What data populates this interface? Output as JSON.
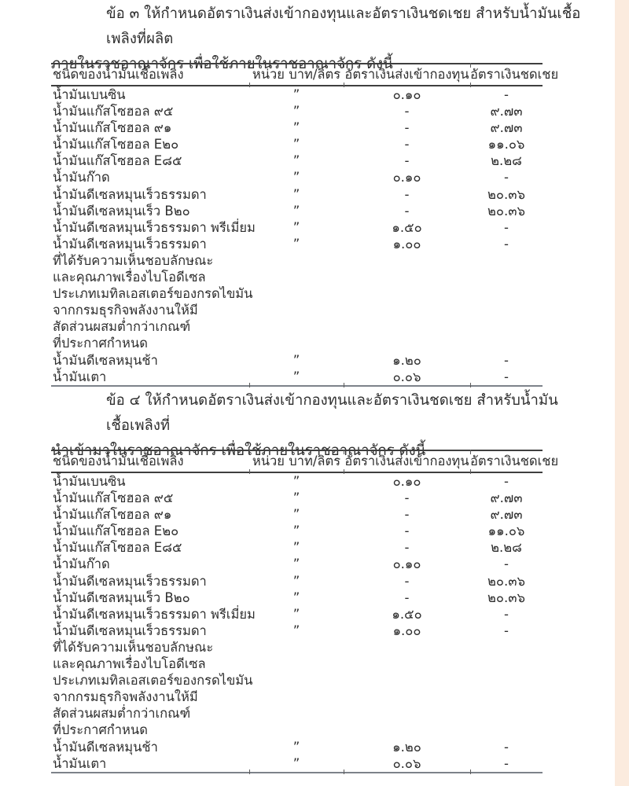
{
  "page": {
    "accent_strip_color": "#fbebde",
    "text_color": "#2e2e2e",
    "rule_color": "#3f3f3f",
    "bottom_rule_color": "#7d828a"
  },
  "sections": [
    {
      "intro": {
        "line1": "ข้อ ๓ ให้กำหนดอัตราเงินส่งเข้ากองทุนและอัตราเงินชดเชย สำหรับน้ำมันเชื้อเพลิงที่ผลิต",
        "line2": "ภายในราชอาณาจักร เพื่อใช้ภายในราชอาณาจักร ดังนี้"
      },
      "table": {
        "headers": [
          "ชนิดของน้ำมันเชื้อเพลิง",
          "หน่วย บาท/ลิตร",
          "อัตราเงินส่งเข้ากองทุน",
          "อัตราเงินชดเชย"
        ],
        "rows": [
          {
            "name": [
              "น้ำมันเบนซิน"
            ],
            "unit": "”",
            "fund": "๐.๑๐",
            "comp": "-"
          },
          {
            "name": [
              "น้ำมันแก๊สโซฮอล ๙๕"
            ],
            "unit": "”",
            "fund": "-",
            "comp": "๙.๗๓"
          },
          {
            "name": [
              "น้ำมันแก๊สโซฮอล ๙๑"
            ],
            "unit": "”",
            "fund": "-",
            "comp": "๙.๗๓"
          },
          {
            "name": [
              "น้ำมันแก๊สโซฮอล E๒๐"
            ],
            "unit": "”",
            "fund": "-",
            "comp": "๑๑.๐๖"
          },
          {
            "name": [
              "น้ำมันแก๊สโซฮอล E๘๕"
            ],
            "unit": "”",
            "fund": "-",
            "comp": "๒.๒๘"
          },
          {
            "name": [
              "น้ำมันก๊าด"
            ],
            "unit": "”",
            "fund": "๐.๑๐",
            "comp": "-"
          },
          {
            "name": [
              "น้ำมันดีเซลหมุนเร็วธรรมดา"
            ],
            "unit": "”",
            "fund": "-",
            "comp": "๒๐.๓๖"
          },
          {
            "name": [
              "น้ำมันดีเซลหมุนเร็ว B๒๐"
            ],
            "unit": "”",
            "fund": "-",
            "comp": "๒๐.๓๖"
          },
          {
            "name": [
              "น้ำมันดีเซลหมุนเร็วธรรมดา พรีเมี่ยม"
            ],
            "unit": "”",
            "fund": "๑.๕๐",
            "comp": "-"
          },
          {
            "name": [
              "น้ำมันดีเซลหมุนเร็วธรรมดา",
              "ที่ได้รับความเห็นชอบลักษณะ",
              "และคุณภาพเรื่องไบโอดีเซล",
              "ประเภทเมทิลเอสเตอร์ของกรดไขมัน",
              "จากกรมธุรกิจพลังงานให้มี",
              "สัดส่วนผสมต่ำกว่าเกณฑ์",
              "ที่ประกาศกำหนด"
            ],
            "unit": "”",
            "fund": "๑.๐๐",
            "comp": "-"
          },
          {
            "name": [
              "น้ำมันดีเซลหมุนช้า"
            ],
            "unit": "”",
            "fund": "๑.๒๐",
            "comp": "-"
          },
          {
            "name": [
              "น้ำมันเตา"
            ],
            "unit": "”",
            "fund": "๐.๐๖",
            "comp": "-"
          }
        ]
      }
    },
    {
      "intro": {
        "line1": "ข้อ ๔ ให้กำหนดอัตราเงินส่งเข้ากองทุนและอัตราเงินชดเชย สำหรับน้ำมันเชื้อเพลิงที่",
        "line2": "นำเข้ามาในราชอาณาจักร เพื่อใช้ภายในราชอาณาจักร ดังนี้"
      },
      "table": {
        "headers": [
          "ชนิดของน้ำมันเชื้อเพลิง",
          "หน่วย บาท/ลิตร",
          "อัตราเงินส่งเข้ากองทุน",
          "อัตราเงินชดเชย"
        ],
        "rows": [
          {
            "name": [
              "น้ำมันเบนซิน"
            ],
            "unit": "”",
            "fund": "๐.๑๐",
            "comp": "-"
          },
          {
            "name": [
              "น้ำมันแก๊สโซฮอล ๙๕"
            ],
            "unit": "”",
            "fund": "-",
            "comp": "๙.๗๓"
          },
          {
            "name": [
              "น้ำมันแก๊สโซฮอล ๙๑"
            ],
            "unit": "”",
            "fund": "-",
            "comp": "๙.๗๓"
          },
          {
            "name": [
              "น้ำมันแก๊สโซฮอล E๒๐"
            ],
            "unit": "”",
            "fund": "-",
            "comp": "๑๑.๐๖"
          },
          {
            "name": [
              "น้ำมันแก๊สโซฮอล E๘๕"
            ],
            "unit": "”",
            "fund": "-",
            "comp": "๒.๒๘"
          },
          {
            "name": [
              "น้ำมันก๊าด"
            ],
            "unit": "”",
            "fund": "๐.๑๐",
            "comp": "-"
          },
          {
            "name": [
              "น้ำมันดีเซลหมุนเร็วธรรมดา"
            ],
            "unit": "”",
            "fund": "-",
            "comp": "๒๐.๓๖"
          },
          {
            "name": [
              "น้ำมันดีเซลหมุนเร็ว B๒๐"
            ],
            "unit": "”",
            "fund": "-",
            "comp": "๒๐.๓๖"
          },
          {
            "name": [
              "น้ำมันดีเซลหมุนเร็วธรรมดา พรีเมี่ยม"
            ],
            "unit": "”",
            "fund": "๑.๕๐",
            "comp": "-"
          },
          {
            "name": [
              "น้ำมันดีเซลหมุนเร็วธรรมดา",
              "ที่ได้รับความเห็นชอบลักษณะ",
              "และคุณภาพเรื่องไบโอดีเซล",
              "ประเภทเมทิลเอสเตอร์ของกรดไขมัน",
              "จากกรมธุรกิจพลังงานให้มี",
              "สัดส่วนผสมต่ำกว่าเกณฑ์",
              "ที่ประกาศกำหนด"
            ],
            "unit": "”",
            "fund": "๑.๐๐",
            "comp": "-"
          },
          {
            "name": [
              "น้ำมันดีเซลหมุนช้า"
            ],
            "unit": "”",
            "fund": "๑.๒๐",
            "comp": "-"
          },
          {
            "name": [
              "น้ำมันเตา"
            ],
            "unit": "”",
            "fund": "๐.๐๖",
            "comp": "-"
          }
        ]
      }
    }
  ]
}
